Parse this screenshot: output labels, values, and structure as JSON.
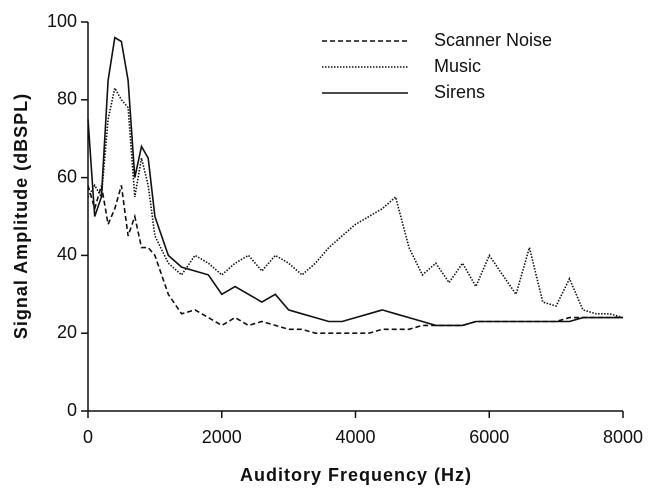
{
  "chart_data": {
    "type": "line",
    "xlabel": "Auditory  Frequency  (Hz)",
    "ylabel": "Signal  Amplitude  (dBSPL)",
    "x": [
      0,
      100,
      200,
      300,
      400,
      500,
      600,
      700,
      800,
      900,
      1000,
      1200,
      1400,
      1600,
      1800,
      2000,
      2200,
      2400,
      2600,
      2800,
      3000,
      3200,
      3400,
      3600,
      3800,
      4000,
      4200,
      4400,
      4600,
      4800,
      5000,
      5200,
      5400,
      5600,
      5800,
      6000,
      6200,
      6400,
      6600,
      6800,
      7000,
      7200,
      7400,
      7600,
      7800,
      8000
    ],
    "series": [
      {
        "name": "Scanner Noise",
        "color": "#111111",
        "style": "dashed",
        "values": [
          58,
          52,
          58,
          48,
          52,
          58,
          45,
          50,
          42,
          42,
          40,
          30,
          25,
          26,
          24,
          22,
          24,
          22,
          23,
          22,
          21,
          21,
          20,
          20,
          20,
          20,
          20,
          21,
          21,
          21,
          22,
          22,
          22,
          22,
          23,
          23,
          23,
          23,
          23,
          23,
          23,
          24,
          24,
          24,
          24,
          24
        ]
      },
      {
        "name": "Music",
        "color": "#111111",
        "style": "dotted",
        "values": [
          55,
          58,
          55,
          75,
          83,
          80,
          78,
          55,
          65,
          58,
          45,
          38,
          35,
          40,
          38,
          35,
          38,
          40,
          36,
          40,
          38,
          35,
          38,
          42,
          45,
          48,
          50,
          52,
          55,
          42,
          35,
          38,
          33,
          38,
          32,
          40,
          35,
          30,
          42,
          28,
          27,
          34,
          26,
          25,
          25,
          24
        ]
      },
      {
        "name": "Sirens",
        "color": "#111111",
        "style": "solid",
        "values": [
          75,
          50,
          55,
          85,
          96,
          95,
          85,
          60,
          68,
          65,
          50,
          40,
          37,
          36,
          35,
          30,
          32,
          30,
          28,
          30,
          26,
          25,
          24,
          23,
          23,
          24,
          25,
          26,
          25,
          24,
          23,
          22,
          22,
          22,
          23,
          23,
          23,
          23,
          23,
          23,
          23,
          23,
          24,
          24,
          24,
          24
        ]
      }
    ],
    "xlim": [
      0,
      8000
    ],
    "xticks": [
      0,
      2000,
      4000,
      6000,
      8000
    ],
    "ylim": [
      0,
      100
    ],
    "yticks": [
      0,
      20,
      40,
      60,
      80,
      100
    ],
    "legend": "upper right"
  }
}
